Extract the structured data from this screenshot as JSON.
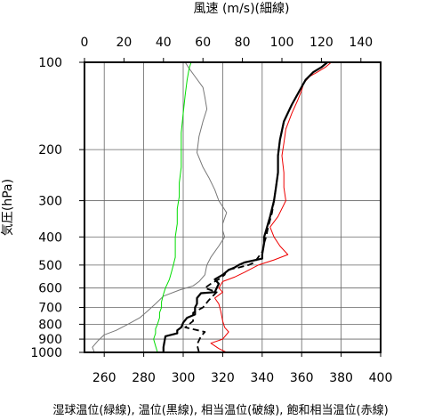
{
  "chart_data": {
    "type": "line",
    "title": "",
    "top_axis": {
      "label": "風速 (m/s)(細線)",
      "range": [
        0,
        150
      ],
      "ticks": [
        0,
        20,
        40,
        60,
        80,
        100,
        120,
        140
      ]
    },
    "bottom_axis": {
      "label": "湿球温位(緑線), 温位(黒線), 相当温位(破線), 飽和相当温位(赤線)",
      "range": [
        250,
        400
      ],
      "ticks": [
        260,
        280,
        300,
        320,
        340,
        360,
        380,
        400
      ]
    },
    "left_axis": {
      "label": "気圧(hPa)",
      "scale": "log",
      "range": [
        1000,
        100
      ],
      "ticks": [
        100,
        200,
        300,
        400,
        500,
        600,
        700,
        800,
        900,
        1000
      ]
    },
    "grid": true,
    "series": [
      {
        "name": "風速",
        "axis": "top",
        "color": "#777777",
        "style": "thin",
        "points": [
          [
            5,
            1000
          ],
          [
            4,
            960
          ],
          [
            7,
            910
          ],
          [
            10,
            870
          ],
          [
            16,
            840
          ],
          [
            22,
            800
          ],
          [
            28,
            760
          ],
          [
            32,
            720
          ],
          [
            36,
            680
          ],
          [
            40,
            640
          ],
          [
            48,
            610
          ],
          [
            55,
            590
          ],
          [
            58,
            570
          ],
          [
            61,
            540
          ],
          [
            62,
            500
          ],
          [
            64,
            470
          ],
          [
            68,
            430
          ],
          [
            71,
            400
          ],
          [
            70,
            380
          ],
          [
            70,
            360
          ],
          [
            72,
            330
          ],
          [
            68,
            300
          ],
          [
            66,
            275
          ],
          [
            63,
            250
          ],
          [
            60,
            230
          ],
          [
            57,
            205
          ],
          [
            58,
            180
          ],
          [
            60,
            160
          ],
          [
            62,
            145
          ],
          [
            61,
            132
          ],
          [
            60,
            122
          ],
          [
            56,
            112
          ],
          [
            53,
            105
          ],
          [
            51,
            100
          ]
        ]
      },
      {
        "name": "湿球温位",
        "axis": "bottom",
        "color": "#00dd00",
        "style": "thin",
        "points": [
          [
            287,
            1000
          ],
          [
            286,
            950
          ],
          [
            285,
            900
          ],
          [
            286,
            860
          ],
          [
            286,
            830
          ],
          [
            287,
            800
          ],
          [
            288,
            760
          ],
          [
            288,
            730
          ],
          [
            289,
            700
          ],
          [
            289,
            670
          ],
          [
            290,
            630
          ],
          [
            291,
            600
          ],
          [
            292,
            580
          ],
          [
            293,
            560
          ],
          [
            294,
            530
          ],
          [
            295,
            500
          ],
          [
            296,
            470
          ],
          [
            296,
            430
          ],
          [
            296,
            400
          ],
          [
            297,
            360
          ],
          [
            297,
            320
          ],
          [
            298,
            290
          ],
          [
            298,
            260
          ],
          [
            299,
            230
          ],
          [
            299,
            200
          ],
          [
            299,
            175
          ],
          [
            300,
            150
          ],
          [
            301,
            130
          ],
          [
            302,
            115
          ],
          [
            303,
            105
          ],
          [
            304,
            100
          ]
        ]
      },
      {
        "name": "温位",
        "axis": "bottom",
        "color": "#000000",
        "style": "solid",
        "points": [
          [
            290,
            1000
          ],
          [
            290,
            960
          ],
          [
            291,
            880
          ],
          [
            297,
            860
          ],
          [
            297,
            840
          ],
          [
            299,
            820
          ],
          [
            300,
            790
          ],
          [
            302,
            760
          ],
          [
            306,
            740
          ],
          [
            306,
            700
          ],
          [
            307,
            680
          ],
          [
            307,
            650
          ],
          [
            309,
            625
          ],
          [
            316,
            620
          ],
          [
            317,
            600
          ],
          [
            318,
            580
          ],
          [
            316,
            560
          ],
          [
            320,
            540
          ],
          [
            323,
            520
          ],
          [
            326,
            510
          ],
          [
            328,
            500
          ],
          [
            331,
            490
          ],
          [
            340,
            475
          ],
          [
            340,
            460
          ],
          [
            341,
            420
          ],
          [
            341,
            400
          ],
          [
            342,
            380
          ],
          [
            344,
            340
          ],
          [
            346,
            300
          ],
          [
            347,
            270
          ],
          [
            348,
            240
          ],
          [
            348,
            210
          ],
          [
            349,
            185
          ],
          [
            351,
            160
          ],
          [
            355,
            140
          ],
          [
            359,
            125
          ],
          [
            362,
            115
          ],
          [
            366,
            108
          ],
          [
            370,
            104
          ],
          [
            373,
            100
          ]
        ]
      },
      {
        "name": "相当温位",
        "axis": "bottom",
        "color": "#000000",
        "style": "dashed",
        "points": [
          [
            308,
            1000
          ],
          [
            307,
            940
          ],
          [
            309,
            880
          ],
          [
            311,
            850
          ],
          [
            301,
            820
          ],
          [
            305,
            780
          ],
          [
            305,
            730
          ],
          [
            310,
            700
          ],
          [
            313,
            660
          ],
          [
            317,
            620
          ],
          [
            311,
            600
          ],
          [
            314,
            580
          ],
          [
            318,
            560
          ],
          [
            321,
            540
          ],
          [
            322,
            520
          ],
          [
            328,
            510
          ],
          [
            333,
            500
          ],
          [
            336,
            490
          ],
          [
            338,
            470
          ],
          [
            340,
            450
          ],
          [
            341,
            420
          ],
          [
            342,
            400
          ],
          [
            343,
            370
          ],
          [
            345,
            330
          ],
          [
            346,
            300
          ],
          [
            347,
            270
          ],
          [
            348,
            240
          ],
          [
            348,
            210
          ],
          [
            349,
            185
          ],
          [
            351,
            160
          ],
          [
            355,
            140
          ],
          [
            359,
            125
          ],
          [
            362,
            115
          ],
          [
            366,
            108
          ],
          [
            370,
            104
          ],
          [
            373,
            100
          ]
        ]
      },
      {
        "name": "飽和相当温位",
        "axis": "bottom",
        "color": "#ee0000",
        "style": "thin",
        "points": [
          [
            322,
            1000
          ],
          [
            318,
            970
          ],
          [
            314,
            930
          ],
          [
            320,
            900
          ],
          [
            323,
            850
          ],
          [
            321,
            820
          ],
          [
            320,
            780
          ],
          [
            319,
            720
          ],
          [
            318,
            680
          ],
          [
            316,
            650
          ],
          [
            320,
            620
          ],
          [
            318,
            600
          ],
          [
            320,
            570
          ],
          [
            326,
            550
          ],
          [
            331,
            530
          ],
          [
            338,
            500
          ],
          [
            346,
            480
          ],
          [
            353,
            460
          ],
          [
            349,
            430
          ],
          [
            346,
            400
          ],
          [
            344,
            370
          ],
          [
            348,
            340
          ],
          [
            352,
            300
          ],
          [
            351,
            270
          ],
          [
            351,
            240
          ],
          [
            350,
            210
          ],
          [
            351,
            190
          ],
          [
            352,
            170
          ],
          [
            355,
            150
          ],
          [
            358,
            135
          ],
          [
            360,
            125
          ],
          [
            361,
            118
          ],
          [
            364,
            112
          ],
          [
            368,
            108
          ],
          [
            372,
            104
          ],
          [
            375,
            100
          ]
        ]
      }
    ]
  }
}
